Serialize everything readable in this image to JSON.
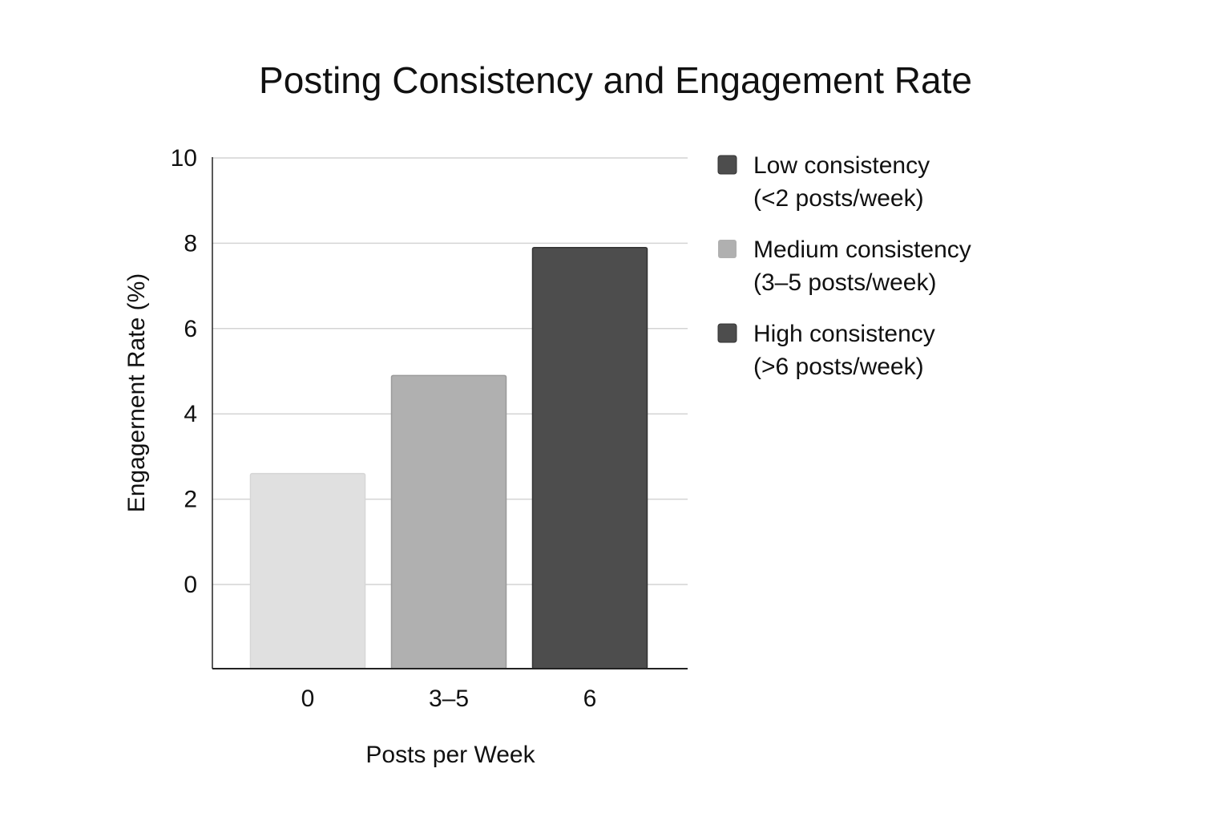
{
  "chart_data": {
    "type": "bar",
    "title": "Posting Consistency and Engagement Rate",
    "xlabel": "Posts per Week",
    "ylabel": "Engagernent Rate (%)",
    "categories": [
      "0",
      "3–5",
      "6"
    ],
    "values": [
      2.6,
      4.9,
      7.9
    ],
    "bar_colors": [
      "#e0e0e0",
      "#b0b0b0",
      "#4d4d4d"
    ],
    "yticks": [
      "10",
      "8",
      "6",
      "4",
      "2",
      "0"
    ],
    "ylim": [
      -2,
      10
    ],
    "grid": true,
    "legend_position": "right",
    "legend": [
      {
        "line1": "Low consistency",
        "line2": "(<2 posts/week)",
        "color": "#4d4d4d"
      },
      {
        "line1": "Medium consistency",
        "line2": "(3–5 posts/week)",
        "color": "#b0b0b0"
      },
      {
        "line1": "High consistency",
        "line2": "(>6 posts/week)",
        "color": "#4d4d4d"
      }
    ]
  }
}
